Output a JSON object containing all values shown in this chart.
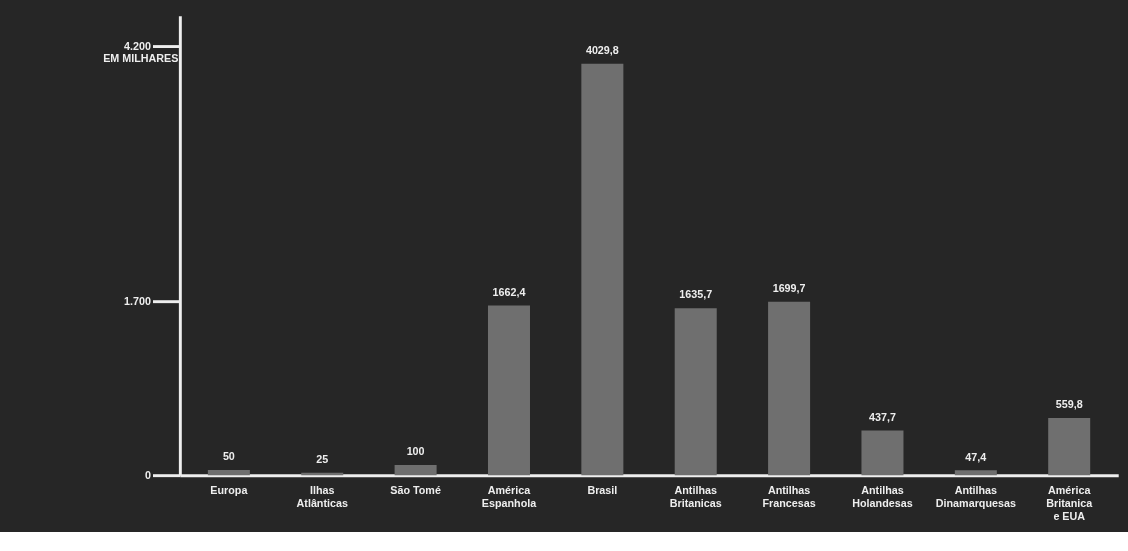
{
  "chart_data": {
    "type": "bar",
    "ylabel": "EM MILHARES",
    "categories": [
      "Europa",
      "Ilhas\nAtlânticas",
      "São Tomé",
      "América\nEspanhola",
      "Brasil",
      "Antilhas\nBritanicas",
      "Antilhas\nFrancesas",
      "Antilhas\nHolandesas",
      "Antilhas\nDinamarquesas",
      "América\nBritanica\ne EUA"
    ],
    "values": [
      50,
      25,
      100,
      1662.4,
      4029.8,
      1635.7,
      1699.7,
      437.7,
      47.4,
      559.8
    ],
    "value_labels": [
      "50",
      "25",
      "100",
      "1662,4",
      "4029,8",
      "1635,7",
      "1699,7",
      "437,7",
      "47,4",
      "559,8"
    ],
    "color": "#6f6f6f",
    "ylim": [
      0,
      4500
    ],
    "yticks": [
      0,
      {
        "value": 1700,
        "label": "1.700"
      },
      {
        "value": 4200,
        "label": "4.200"
      }
    ],
    "grid": false
  }
}
